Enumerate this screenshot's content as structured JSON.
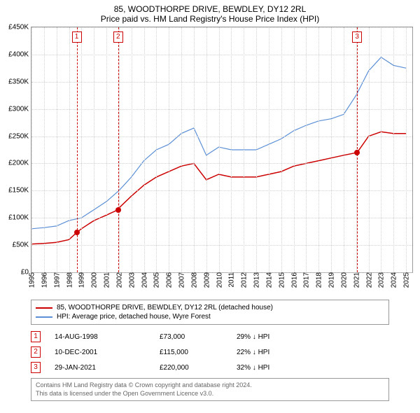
{
  "title": "85, WOODTHORPE DRIVE, BEWDLEY, DY12 2RL",
  "subtitle": "Price paid vs. HM Land Registry's House Price Index (HPI)",
  "chart": {
    "type": "line",
    "ylim": [
      0,
      450000
    ],
    "ytick_step": 50000,
    "yticks": [
      0,
      50000,
      100000,
      150000,
      200000,
      250000,
      300000,
      350000,
      400000,
      450000
    ],
    "ylabels": [
      "£0",
      "£50K",
      "£100K",
      "£150K",
      "£200K",
      "£250K",
      "£300K",
      "£350K",
      "£400K",
      "£450K"
    ],
    "xlim": [
      1995,
      2025.5
    ],
    "xticks": [
      1995,
      1996,
      1997,
      1998,
      1999,
      2000,
      2001,
      2002,
      2003,
      2004,
      2005,
      2006,
      2007,
      2008,
      2009,
      2010,
      2011,
      2012,
      2013,
      2014,
      2015,
      2016,
      2017,
      2018,
      2019,
      2020,
      2021,
      2022,
      2023,
      2024,
      2025
    ],
    "background_color": "#ffffff",
    "grid_color": "#d0d0d0",
    "border_color": "#999999",
    "title_fontsize": 12,
    "label_fontsize": 10,
    "series": [
      {
        "name": "price_paid",
        "label": "85, WOODTHORPE DRIVE, BEWDLEY, DY12 2RL (detached house)",
        "color": "#cc0000",
        "line_width": 1.5,
        "data": [
          [
            1995,
            52000
          ],
          [
            1996,
            53000
          ],
          [
            1997,
            55000
          ],
          [
            1998,
            60000
          ],
          [
            1998.62,
            73000
          ],
          [
            1999,
            80000
          ],
          [
            2000,
            95000
          ],
          [
            2001,
            105000
          ],
          [
            2001.94,
            115000
          ],
          [
            2002,
            118000
          ],
          [
            2003,
            140000
          ],
          [
            2004,
            160000
          ],
          [
            2005,
            175000
          ],
          [
            2006,
            185000
          ],
          [
            2007,
            195000
          ],
          [
            2008,
            200000
          ],
          [
            2009,
            170000
          ],
          [
            2010,
            180000
          ],
          [
            2011,
            175000
          ],
          [
            2012,
            175000
          ],
          [
            2013,
            175000
          ],
          [
            2014,
            180000
          ],
          [
            2015,
            185000
          ],
          [
            2016,
            195000
          ],
          [
            2017,
            200000
          ],
          [
            2018,
            205000
          ],
          [
            2019,
            210000
          ],
          [
            2020,
            215000
          ],
          [
            2021.08,
            220000
          ],
          [
            2022,
            250000
          ],
          [
            2023,
            258000
          ],
          [
            2024,
            255000
          ],
          [
            2025,
            255000
          ]
        ]
      },
      {
        "name": "hpi",
        "label": "HPI: Average price, detached house, Wyre Forest",
        "color": "#5b8fd6",
        "line_width": 1.2,
        "data": [
          [
            1995,
            80000
          ],
          [
            1996,
            82000
          ],
          [
            1997,
            85000
          ],
          [
            1998,
            95000
          ],
          [
            1999,
            100000
          ],
          [
            2000,
            115000
          ],
          [
            2001,
            130000
          ],
          [
            2002,
            150000
          ],
          [
            2003,
            175000
          ],
          [
            2004,
            205000
          ],
          [
            2005,
            225000
          ],
          [
            2006,
            235000
          ],
          [
            2007,
            255000
          ],
          [
            2008,
            265000
          ],
          [
            2009,
            215000
          ],
          [
            2010,
            230000
          ],
          [
            2011,
            225000
          ],
          [
            2012,
            225000
          ],
          [
            2013,
            225000
          ],
          [
            2014,
            235000
          ],
          [
            2015,
            245000
          ],
          [
            2016,
            260000
          ],
          [
            2017,
            270000
          ],
          [
            2018,
            278000
          ],
          [
            2019,
            282000
          ],
          [
            2020,
            290000
          ],
          [
            2021,
            325000
          ],
          [
            2022,
            370000
          ],
          [
            2023,
            395000
          ],
          [
            2024,
            380000
          ],
          [
            2025,
            375000
          ]
        ]
      }
    ],
    "markers": [
      {
        "num": "1",
        "x": 1998.62,
        "y": 73000,
        "color": "#cc0000"
      },
      {
        "num": "2",
        "x": 2001.94,
        "y": 115000,
        "color": "#cc0000"
      },
      {
        "num": "3",
        "x": 2021.08,
        "y": 220000,
        "color": "#cc0000"
      }
    ]
  },
  "legend": {
    "border_color": "#999999",
    "items": [
      {
        "color": "#cc0000",
        "label": "85, WOODTHORPE DRIVE, BEWDLEY, DY12 2RL (detached house)"
      },
      {
        "color": "#5b8fd6",
        "label": "HPI: Average price, detached house, Wyre Forest"
      }
    ]
  },
  "sales": [
    {
      "num": "1",
      "date": "14-AUG-1998",
      "price": "£73,000",
      "diff": "29% ↓ HPI"
    },
    {
      "num": "2",
      "date": "10-DEC-2001",
      "price": "£115,000",
      "diff": "22% ↓ HPI"
    },
    {
      "num": "3",
      "date": "29-JAN-2021",
      "price": "£220,000",
      "diff": "32% ↓ HPI"
    }
  ],
  "footer_line1": "Contains HM Land Registry data © Crown copyright and database right 2024.",
  "footer_line2": "This data is licensed under the Open Government Licence v3.0."
}
